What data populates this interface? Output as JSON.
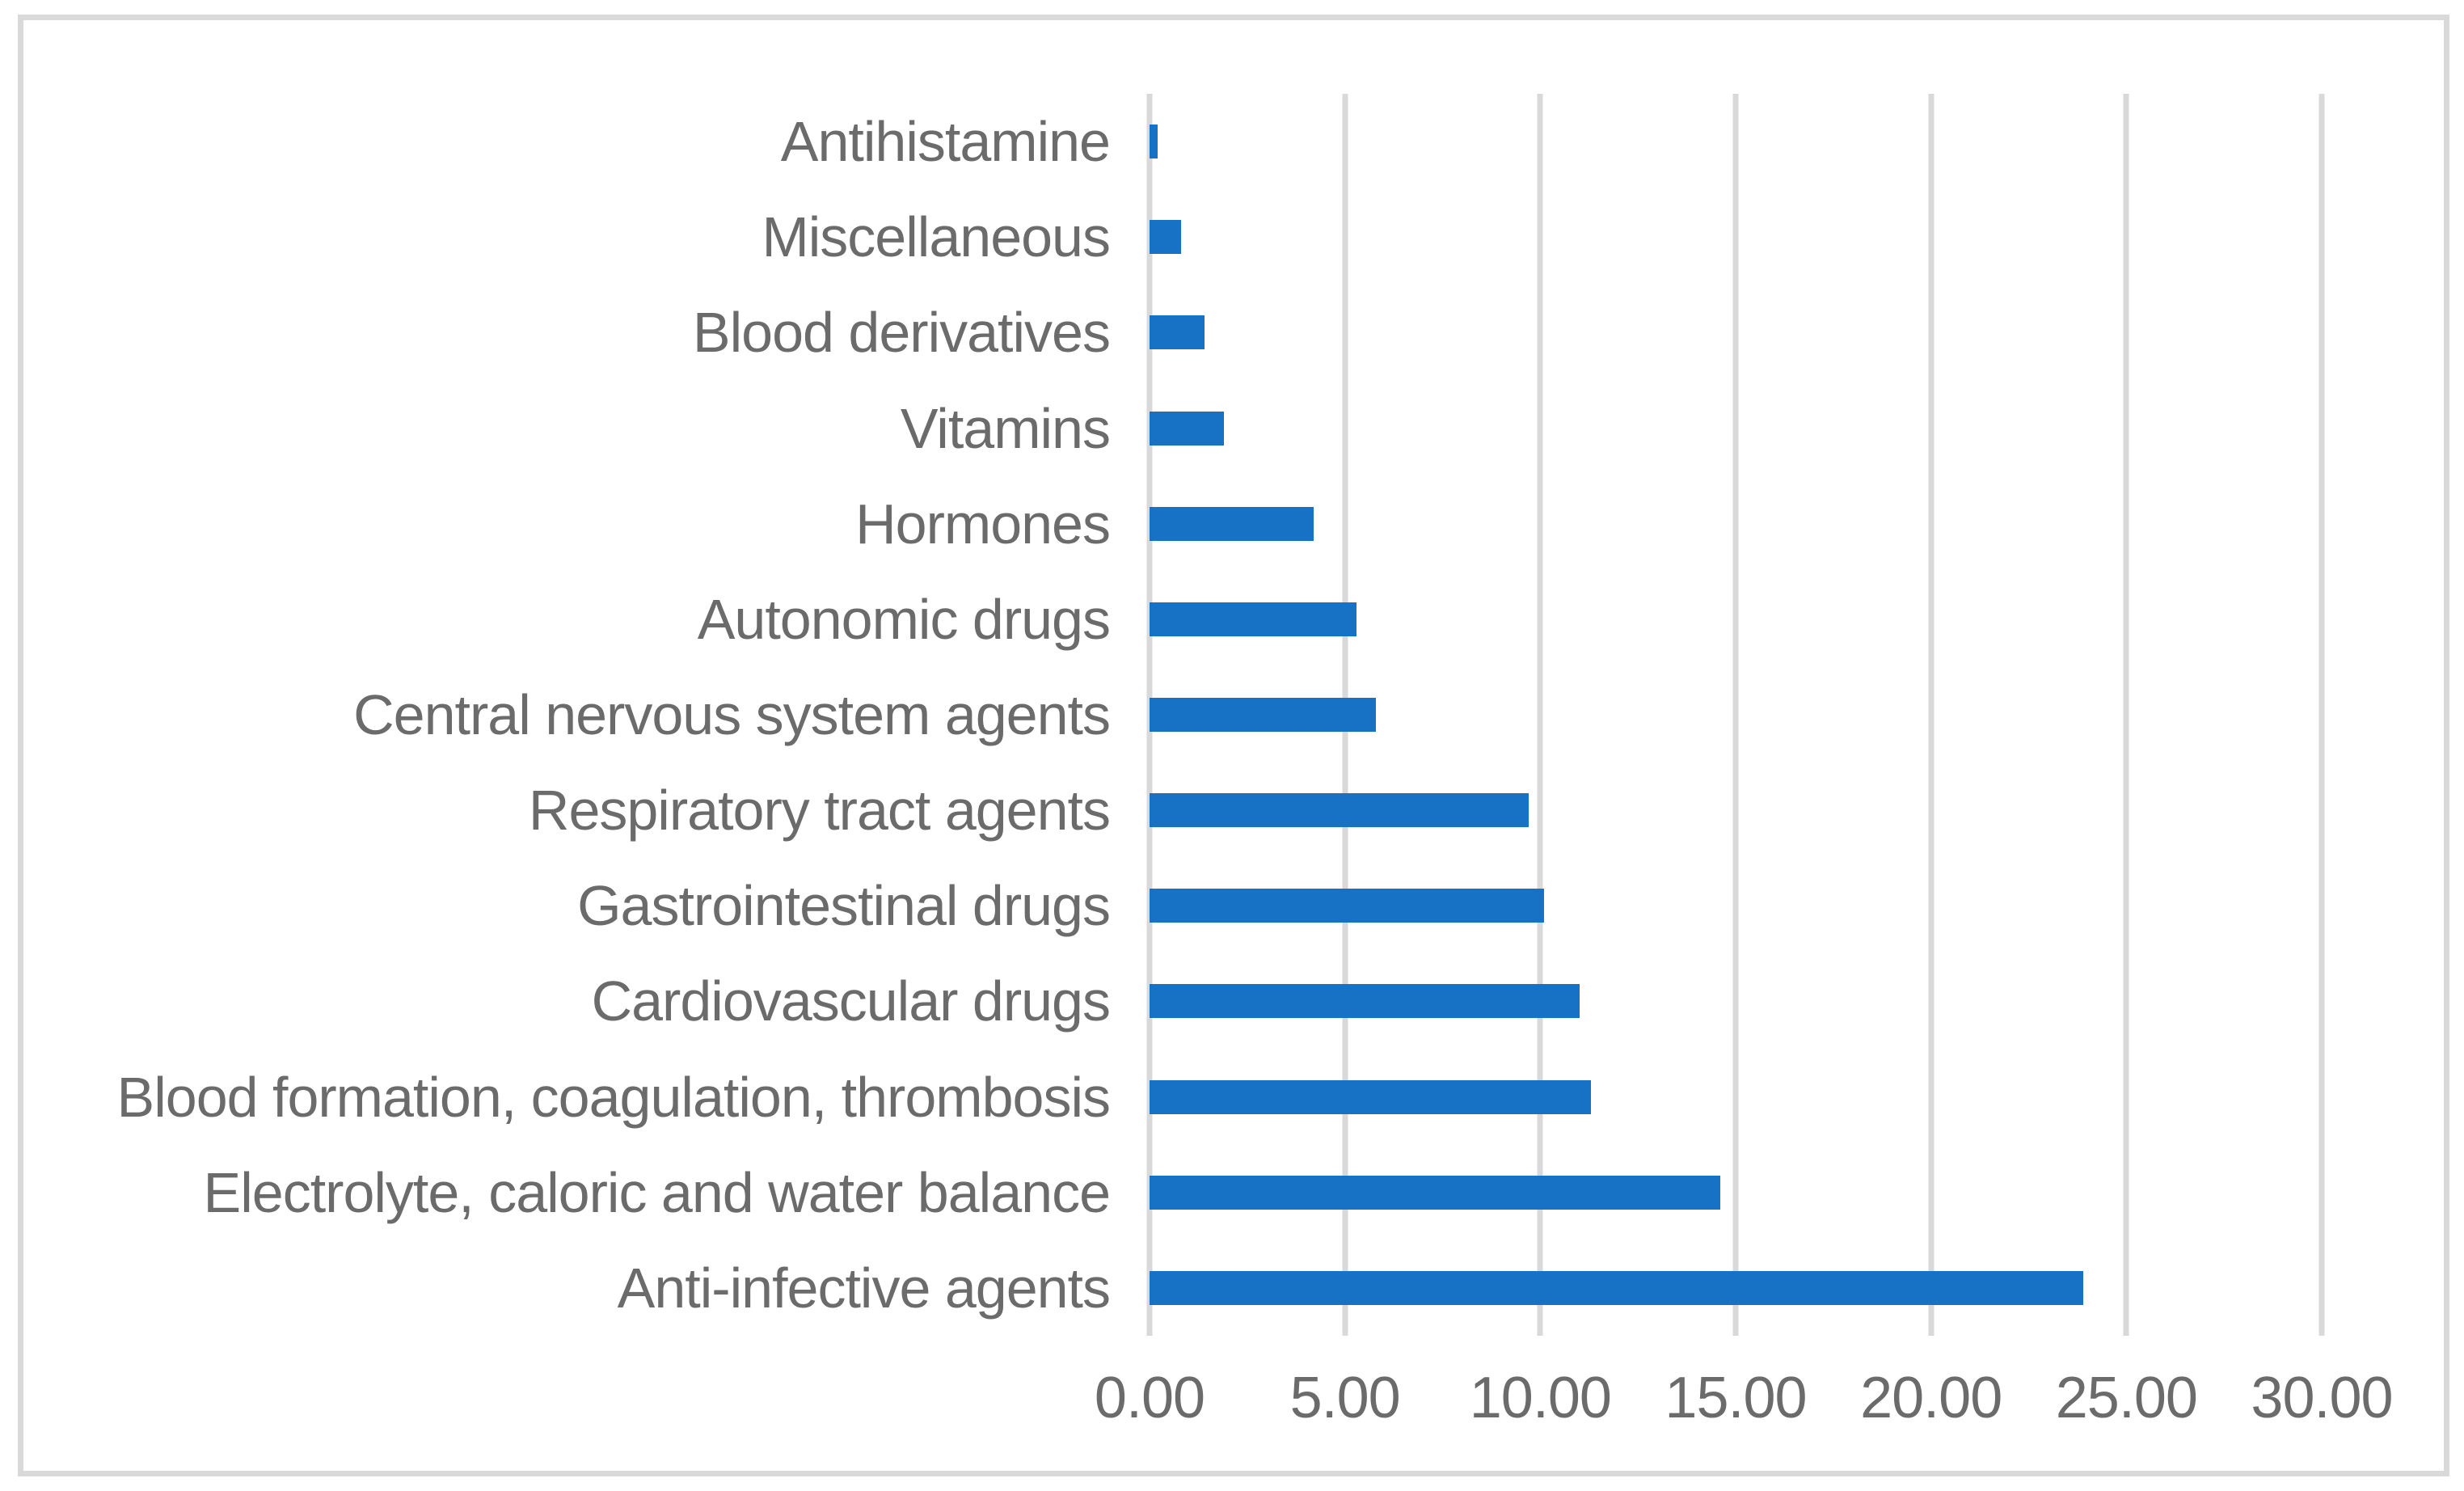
{
  "chart_data": {
    "type": "bar",
    "orientation": "horizontal",
    "title": "",
    "xlabel": "",
    "ylabel": "",
    "categories": [
      "Antihistamine",
      "Miscellaneous",
      "Blood derivatives",
      "Vitamins",
      "Hormones",
      "Autonomic drugs",
      "Central nervous system agents",
      "Respiratory tract agents",
      "Gastrointestinal drugs",
      "Cardiovascular drugs",
      "Blood formation, coagulation, thrombosis",
      "Electrolyte, caloric and water balance",
      "Anti-infective agents"
    ],
    "values": [
      0.2,
      0.8,
      1.4,
      1.9,
      4.2,
      5.3,
      5.8,
      9.7,
      10.1,
      11.0,
      11.3,
      14.6,
      23.9
    ],
    "xlim": [
      0,
      30
    ],
    "x_tick_values": [
      0,
      5,
      10,
      15,
      20,
      25,
      30
    ],
    "x_tick_labels": [
      "0.00",
      "5.00",
      "10.00",
      "15.00",
      "20.00",
      "25.00",
      "30.00"
    ],
    "grid": "vertical-gridlines",
    "legend": "none",
    "colors": {
      "bar": "#1772C6",
      "gridline": "#D9D9D9",
      "frame": "#D9D9D9",
      "text": "#6B6B6B",
      "background": "#FFFFFF"
    }
  }
}
